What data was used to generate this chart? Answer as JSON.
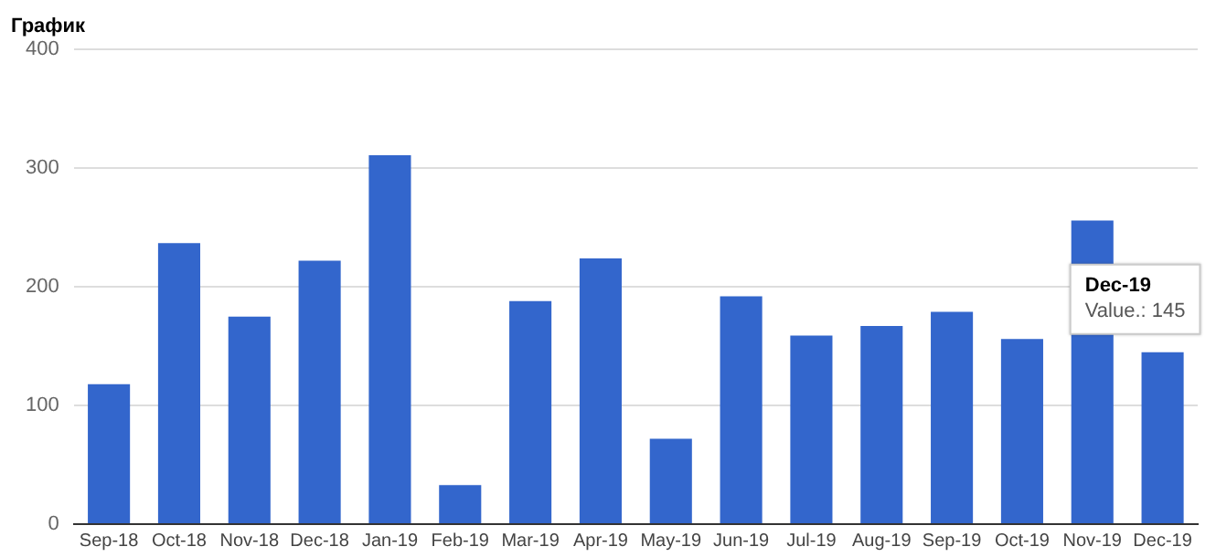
{
  "chart_data": {
    "type": "bar",
    "title": "График",
    "categories": [
      "Sep-18",
      "Oct-18",
      "Nov-18",
      "Dec-18",
      "Jan-19",
      "Feb-19",
      "Mar-19",
      "Apr-19",
      "May-19",
      "Jun-19",
      "Jul-19",
      "Aug-19",
      "Sep-19",
      "Oct-19",
      "Nov-19",
      "Dec-19"
    ],
    "values": [
      118,
      237,
      175,
      222,
      311,
      33,
      188,
      224,
      72,
      192,
      159,
      167,
      179,
      156,
      256,
      145
    ],
    "color": "#3366cc",
    "ylim": [
      0,
      400
    ],
    "yticks": [
      0,
      100,
      200,
      300,
      400
    ],
    "grid": "y",
    "legend": false,
    "annotations": [
      {
        "text": "Dec-19\nValue.: 145",
        "x": "Dec-19",
        "y": 145
      }
    ]
  }
}
